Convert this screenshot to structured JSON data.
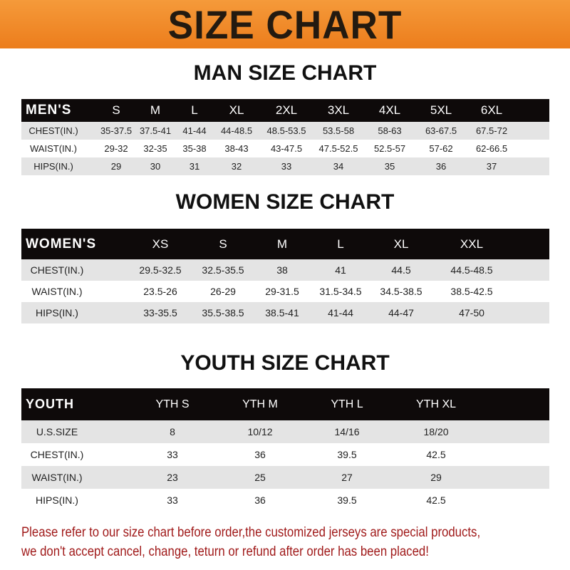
{
  "banner": {
    "title": "SIZE CHART",
    "color": "#f08a24"
  },
  "tables": [
    {
      "title": "MAN SIZE CHART",
      "header": [
        "MEN'S",
        "S",
        "M",
        "L",
        "XL",
        "2XL",
        "3XL",
        "4XL",
        "5XL",
        "6XL"
      ],
      "rows": [
        [
          "CHEST(IN.)",
          "35-37.5",
          "37.5-41",
          "41-44",
          "44-48.5",
          "48.5-53.5",
          "53.5-58",
          "58-63",
          "63-67.5",
          "67.5-72"
        ],
        [
          "WAIST(IN.)",
          "29-32",
          "32-35",
          "35-38",
          "38-43",
          "43-47.5",
          "47.5-52.5",
          "52.5-57",
          "57-62",
          "62-66.5"
        ],
        [
          "HIPS(IN.)",
          "29",
          "30",
          "31",
          "32",
          "33",
          "34",
          "35",
          "36",
          "37"
        ]
      ]
    },
    {
      "title": "WOMEN SIZE CHART",
      "header": [
        "WOMEN'S",
        "XS",
        "S",
        "M",
        "L",
        "XL",
        "XXL"
      ],
      "rows": [
        [
          "CHEST(IN.)",
          "29.5-32.5",
          "32.5-35.5",
          "38",
          "41",
          "44.5",
          "44.5-48.5"
        ],
        [
          "WAIST(IN.)",
          "23.5-26",
          "26-29",
          "29-31.5",
          "31.5-34.5",
          "34.5-38.5",
          "38.5-42.5"
        ],
        [
          "HIPS(IN.)",
          "33-35.5",
          "35.5-38.5",
          "38.5-41",
          "41-44",
          "44-47",
          "47-50"
        ]
      ]
    },
    {
      "title": "YOUTH SIZE CHART",
      "header": [
        "YOUTH",
        "YTH S",
        "YTH M",
        "YTH L",
        "YTH XL"
      ],
      "rows": [
        [
          "U.S.SIZE",
          "8",
          "10/12",
          "14/16",
          "18/20"
        ],
        [
          "CHEST(IN.)",
          "33",
          "36",
          "39.5",
          "42.5"
        ],
        [
          "WAIST(IN.)",
          "23",
          "25",
          "27",
          "29"
        ],
        [
          "HIPS(IN.)",
          "33",
          "36",
          "39.5",
          "42.5"
        ]
      ]
    }
  ],
  "footer": {
    "line1": "Please refer to our size chart before order,the customized jerseys are special products,",
    "line2": "we don't accept cancel, change, teturn or refund after order has been placed!",
    "color": "#a01a1a"
  }
}
